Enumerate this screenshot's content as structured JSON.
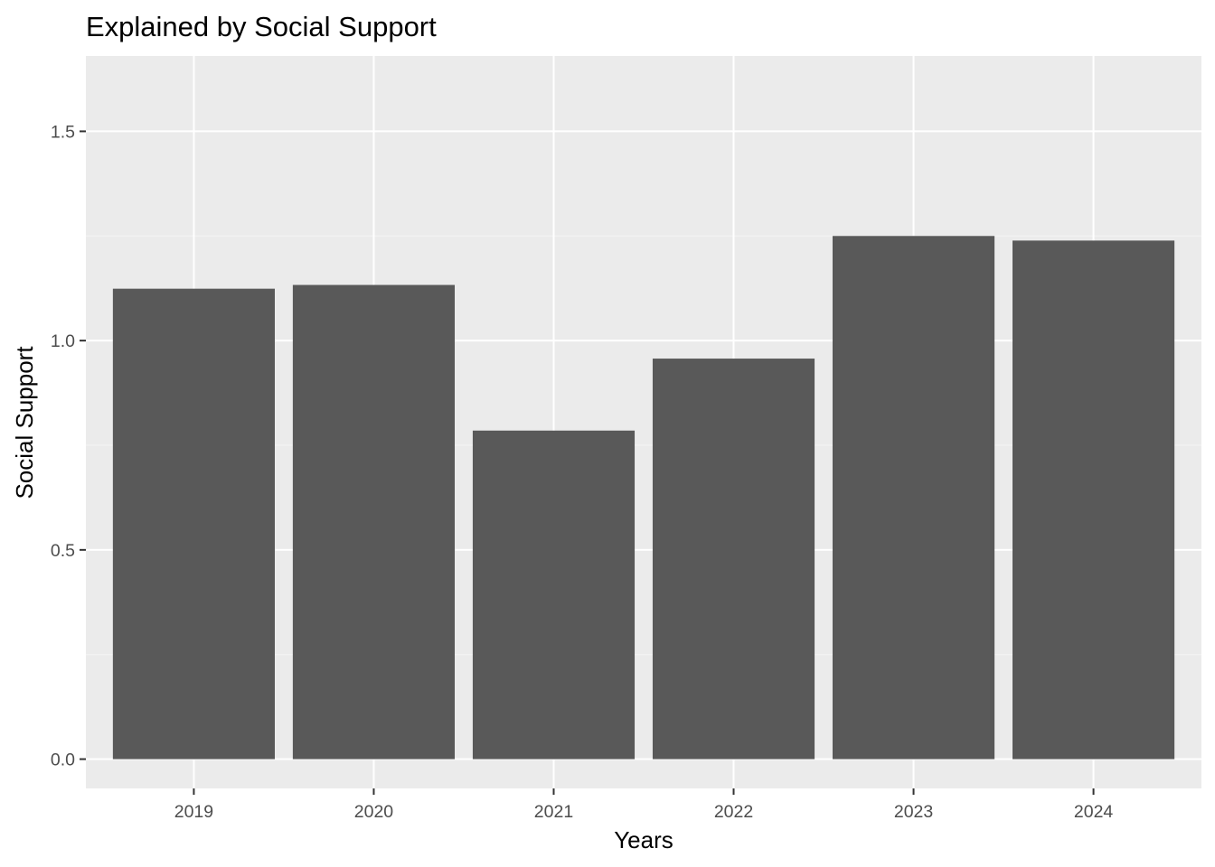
{
  "chart_data": {
    "type": "bar",
    "title": "Explained by Social Support",
    "xlabel": "Years",
    "ylabel": "Social Support",
    "categories": [
      "2019",
      "2020",
      "2021",
      "2022",
      "2023",
      "2024"
    ],
    "values": [
      1.124,
      1.133,
      0.785,
      0.957,
      1.25,
      1.239
    ],
    "ylim": [
      -0.07,
      1.68
    ],
    "yticks": [
      0.0,
      0.5,
      1.0,
      1.5
    ],
    "ytick_labels": [
      "0.0",
      "0.5",
      "1.0",
      "1.5"
    ],
    "grid": true,
    "legend": "none",
    "colors": {
      "bar": "#595959",
      "panel_background": "#ebebeb",
      "grid_major": "#ffffff",
      "grid_minor": "#f5f5f5",
      "tick_text": "#4d4d4d",
      "tick_mark": "#333333"
    }
  }
}
